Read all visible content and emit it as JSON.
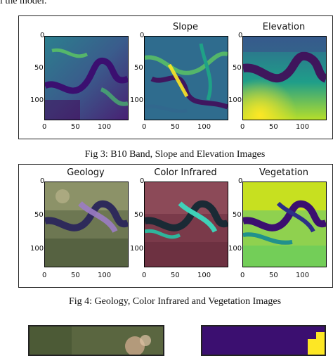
{
  "top_text": "l the model.",
  "figure3": {
    "caption": "Fig 3: B10 Band, Slope and Elevation Images",
    "panels": [
      {
        "title": "",
        "colormap": "viridis",
        "xticks": [
          "0",
          "50",
          "100"
        ],
        "yticks": [
          "0",
          "50",
          "100"
        ]
      },
      {
        "title": "Slope",
        "colormap": "viridis",
        "xticks": [
          "0",
          "50",
          "100"
        ],
        "yticks": [
          "0",
          "50",
          "100"
        ]
      },
      {
        "title": "Elevation",
        "colormap": "viridis",
        "xticks": [
          "0",
          "50",
          "100"
        ],
        "yticks": [
          "0",
          "50",
          "100"
        ]
      }
    ]
  },
  "figure4": {
    "caption": "Fig 4: Geology, Color Infrared and Vegetation Images",
    "panels": [
      {
        "title": "Geology",
        "colormap": "false-color",
        "xticks": [
          "0",
          "50",
          "100"
        ],
        "yticks": [
          "0",
          "50",
          "100"
        ]
      },
      {
        "title": "Color Infrared",
        "colormap": "infrared",
        "xticks": [
          "0",
          "50",
          "100"
        ],
        "yticks": [
          "0",
          "50",
          "100"
        ]
      },
      {
        "title": "Vegetation",
        "colormap": "viridis",
        "xticks": [
          "0",
          "50",
          "100"
        ],
        "yticks": [
          "0",
          "50",
          "100"
        ]
      }
    ]
  },
  "colors": {
    "viridis_dark": "#3b0f70",
    "viridis_mid": "#21918c",
    "viridis_light": "#fde725",
    "frame": "#222222"
  }
}
